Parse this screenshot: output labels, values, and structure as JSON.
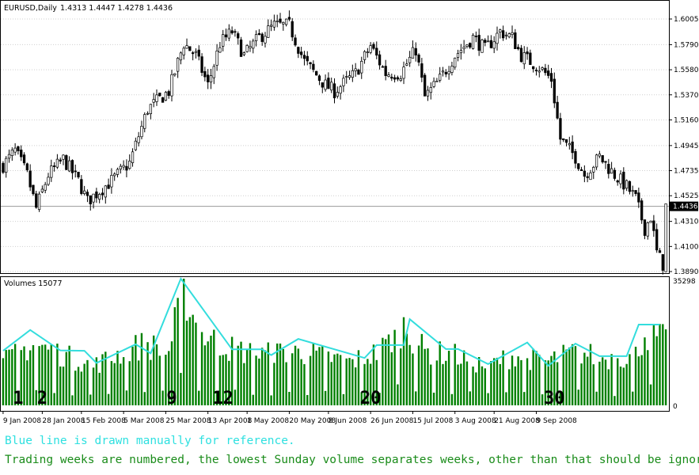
{
  "chart_data": [
    {
      "type": "candlestick",
      "title": "EURUSD,Daily",
      "ohlc_header": [
        "1.4313",
        "1.4447",
        "1.4278",
        "1.4436"
      ],
      "current_price_label": "1.4436",
      "current_price": 1.4436,
      "ylim": [
        1.389,
        1.6005
      ],
      "y_ticks": [
        "1.6005",
        "1.5790",
        "1.5580",
        "1.5370",
        "1.5160",
        "1.4945",
        "1.4735",
        "1.4525",
        "1.4310",
        "1.4100",
        "1.3890"
      ],
      "grid": true,
      "anchors": [
        {
          "day": 0,
          "price": 1.478
        },
        {
          "day": 4,
          "price": 1.49
        },
        {
          "day": 8,
          "price": 1.47
        },
        {
          "day": 11,
          "price": 1.442
        },
        {
          "day": 15,
          "price": 1.47
        },
        {
          "day": 20,
          "price": 1.483
        },
        {
          "day": 25,
          "price": 1.465
        },
        {
          "day": 28,
          "price": 1.448
        },
        {
          "day": 36,
          "price": 1.465
        },
        {
          "day": 42,
          "price": 1.48
        },
        {
          "day": 48,
          "price": 1.525
        },
        {
          "day": 55,
          "price": 1.54
        },
        {
          "day": 60,
          "price": 1.58
        },
        {
          "day": 64,
          "price": 1.57
        },
        {
          "day": 68,
          "price": 1.545
        },
        {
          "day": 72,
          "price": 1.58
        },
        {
          "day": 76,
          "price": 1.59
        },
        {
          "day": 80,
          "price": 1.57
        },
        {
          "day": 85,
          "price": 1.585
        },
        {
          "day": 90,
          "price": 1.595
        },
        {
          "day": 95,
          "price": 1.595
        },
        {
          "day": 100,
          "price": 1.565
        },
        {
          "day": 107,
          "price": 1.545
        },
        {
          "day": 110,
          "price": 1.54
        },
        {
          "day": 117,
          "price": 1.555
        },
        {
          "day": 122,
          "price": 1.578
        },
        {
          "day": 127,
          "price": 1.555
        },
        {
          "day": 132,
          "price": 1.555
        },
        {
          "day": 137,
          "price": 1.575
        },
        {
          "day": 140,
          "price": 1.535
        },
        {
          "day": 145,
          "price": 1.55
        },
        {
          "day": 150,
          "price": 1.57
        },
        {
          "day": 156,
          "price": 1.585
        },
        {
          "day": 160,
          "price": 1.575
        },
        {
          "day": 165,
          "price": 1.59
        },
        {
          "day": 169,
          "price": 1.585
        },
        {
          "day": 172,
          "price": 1.57
        },
        {
          "day": 178,
          "price": 1.56
        },
        {
          "day": 182,
          "price": 1.55
        },
        {
          "day": 185,
          "price": 1.5
        },
        {
          "day": 190,
          "price": 1.485
        },
        {
          "day": 193,
          "price": 1.47
        },
        {
          "day": 198,
          "price": 1.485
        },
        {
          "day": 203,
          "price": 1.47
        },
        {
          "day": 207,
          "price": 1.46
        },
        {
          "day": 210,
          "price": 1.45
        },
        {
          "day": 213,
          "price": 1.425
        },
        {
          "day": 215,
          "price": 1.435
        },
        {
          "day": 217,
          "price": 1.405
        },
        {
          "day": 219,
          "price": 1.395
        },
        {
          "day": 220,
          "price": 1.4436
        }
      ],
      "x_labels": [
        {
          "day": 0,
          "label": "9 Jan 2008"
        },
        {
          "day": 13,
          "label": "28 Jan 2008"
        },
        {
          "day": 26,
          "label": "15 Feb 2008"
        },
        {
          "day": 40,
          "label": "5 Mar 2008"
        },
        {
          "day": 54,
          "label": "25 Mar 2008"
        },
        {
          "day": 68,
          "label": "13 Apr 2008"
        },
        {
          "day": 81,
          "label": "1 May 2008"
        },
        {
          "day": 95,
          "label": "20 May 2008"
        },
        {
          "day": 108,
          "label": "8 Jun 2008"
        },
        {
          "day": 122,
          "label": "26 Jun 2008"
        },
        {
          "day": 136,
          "label": "15 Jul 2008"
        },
        {
          "day": 150,
          "label": "3 Aug 2008"
        },
        {
          "day": 163,
          "label": "21 Aug 2008"
        },
        {
          "day": 177,
          "label": "9 Sep 2008"
        }
      ]
    },
    {
      "type": "bar",
      "title": "Volumes 15077",
      "ylim": [
        0,
        35298
      ],
      "y_ticks": [
        "35298",
        "0"
      ],
      "bar_color": "#008000",
      "volume_anchors": [
        {
          "day": 0,
          "value": 12000
        },
        {
          "day": 10,
          "value": 17000
        },
        {
          "day": 20,
          "value": 14000
        },
        {
          "day": 30,
          "value": 11000
        },
        {
          "day": 40,
          "value": 15000
        },
        {
          "day": 47,
          "value": 17000
        },
        {
          "day": 55,
          "value": 15000
        },
        {
          "day": 60,
          "value": 33000
        },
        {
          "day": 65,
          "value": 20000
        },
        {
          "day": 75,
          "value": 16000
        },
        {
          "day": 85,
          "value": 14000
        },
        {
          "day": 95,
          "value": 15000
        },
        {
          "day": 105,
          "value": 14000
        },
        {
          "day": 115,
          "value": 12000
        },
        {
          "day": 125,
          "value": 15000
        },
        {
          "day": 133,
          "value": 22000
        },
        {
          "day": 140,
          "value": 15000
        },
        {
          "day": 150,
          "value": 14000
        },
        {
          "day": 160,
          "value": 11000
        },
        {
          "day": 170,
          "value": 14000
        },
        {
          "day": 180,
          "value": 12000
        },
        {
          "day": 190,
          "value": 15000
        },
        {
          "day": 200,
          "value": 13000
        },
        {
          "day": 210,
          "value": 14000
        },
        {
          "day": 213,
          "value": 20000
        },
        {
          "day": 220,
          "value": 18000
        }
      ],
      "week_labels": [
        {
          "label": "1",
          "day": 5
        },
        {
          "label": "2",
          "day": 13
        },
        {
          "label": "9",
          "day": 56
        },
        {
          "label": "12",
          "day": 73
        },
        {
          "label": "20",
          "day": 122
        },
        {
          "label": "30",
          "day": 183
        }
      ],
      "reference_line": {
        "color": "#33dddd",
        "points": [
          {
            "day": 0,
            "value": 15200
          },
          {
            "day": 9,
            "value": 21000
          },
          {
            "day": 19,
            "value": 15300
          },
          {
            "day": 27,
            "value": 15200
          },
          {
            "day": 31,
            "value": 11800
          },
          {
            "day": 44,
            "value": 17000
          },
          {
            "day": 49,
            "value": 14500
          },
          {
            "day": 59,
            "value": 35298
          },
          {
            "day": 76,
            "value": 15600
          },
          {
            "day": 86,
            "value": 15600
          },
          {
            "day": 89,
            "value": 14000
          },
          {
            "day": 98,
            "value": 18500
          },
          {
            "day": 120,
            "value": 13200
          },
          {
            "day": 124,
            "value": 16800
          },
          {
            "day": 133,
            "value": 16800
          },
          {
            "day": 135,
            "value": 24000
          },
          {
            "day": 147,
            "value": 15700
          },
          {
            "day": 151,
            "value": 15700
          },
          {
            "day": 161,
            "value": 11500
          },
          {
            "day": 174,
            "value": 17500
          },
          {
            "day": 181,
            "value": 11000
          },
          {
            "day": 190,
            "value": 17200
          },
          {
            "day": 198,
            "value": 13700
          },
          {
            "day": 207,
            "value": 13700
          },
          {
            "day": 211,
            "value": 22500
          },
          {
            "day": 218,
            "value": 22500
          }
        ]
      }
    }
  ],
  "notes": [
    "Blue line is drawn manually for reference.",
    "Trading weeks are numbered, the lowest Sunday volume separates weeks, other than that should be ignored."
  ]
}
